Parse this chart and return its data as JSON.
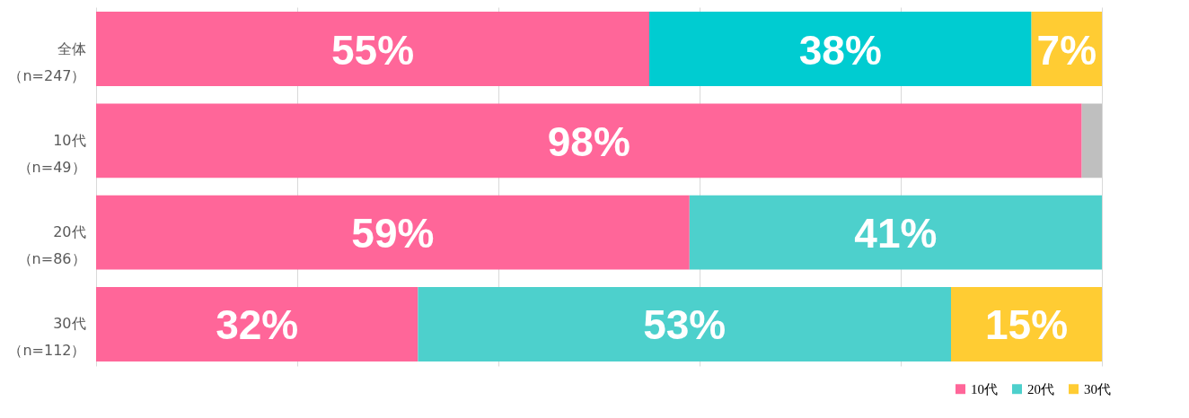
{
  "chart_data": {
    "type": "bar",
    "orientation": "horizontal",
    "stacked": true,
    "categories": [
      "全体（n=247）",
      "10代（n=49）",
      "20代（n=86）",
      "30代（n=112）"
    ],
    "series": [
      {
        "name": "10代",
        "color": "#ff6699",
        "values": [
          55,
          98,
          59,
          32
        ],
        "value_labels": [
          "55%",
          "98%",
          "59%",
          "32%"
        ]
      },
      {
        "name": "20代",
        "color": "#4dd0cc",
        "colors": [
          "#00ccd1",
          null,
          "#4dd0cc",
          "#4dd0cc"
        ],
        "values": [
          38,
          null,
          41,
          53
        ],
        "value_labels": [
          "38%",
          null,
          "41%",
          "53%"
        ]
      },
      {
        "name": "30代",
        "color": "#ffcc33",
        "values": [
          7,
          null,
          null,
          15
        ],
        "value_labels": [
          "7%",
          null,
          null,
          "15%"
        ]
      },
      {
        "color": "#bfbfbf",
        "values": [
          null,
          2,
          null,
          null
        ]
      }
    ],
    "xlim": [
      0,
      100
    ],
    "xticks": [
      0,
      20,
      40,
      60,
      80,
      100
    ],
    "grid": "x",
    "tick_labels": "y",
    "legend": "bottom right"
  }
}
